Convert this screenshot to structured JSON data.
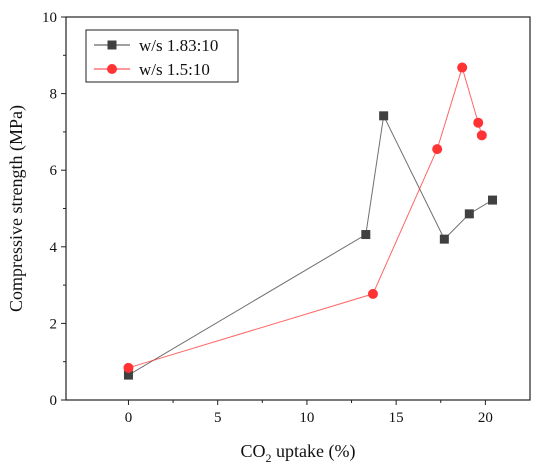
{
  "chart_data": {
    "type": "line",
    "title": "",
    "xlabel_prefix": "CO",
    "xlabel_sub": "2",
    "xlabel_suffix": " uptake (%)",
    "ylabel": "Compressive strength (MPa)",
    "xlim": [
      -3.5,
      22.5
    ],
    "ylim": [
      0,
      10
    ],
    "xticks": [
      0,
      5,
      10,
      15,
      20
    ],
    "yticks": [
      0,
      2,
      4,
      6,
      8,
      10
    ],
    "grid": false,
    "legend_position": "top-left",
    "series": [
      {
        "name": "w/s 1.83:10",
        "marker": "square",
        "color": "#404040",
        "x": [
          0,
          13.3,
          14.3,
          17.7,
          19.1,
          20.4
        ],
        "y": [
          0.65,
          4.32,
          7.42,
          4.2,
          4.86,
          5.22
        ]
      },
      {
        "name": "w/s 1.5:10",
        "marker": "circle",
        "color": "#ff3333",
        "x": [
          0,
          13.7,
          17.3,
          18.7,
          19.6,
          19.8
        ],
        "y": [
          0.84,
          2.77,
          6.55,
          8.68,
          7.24,
          6.91
        ]
      }
    ]
  }
}
